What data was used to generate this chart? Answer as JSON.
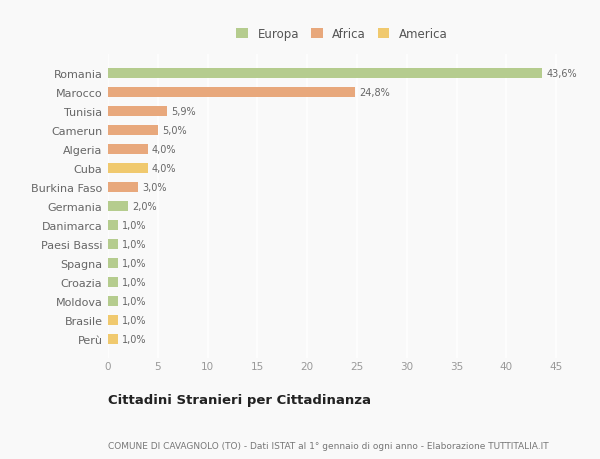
{
  "countries": [
    "Romania",
    "Marocco",
    "Tunisia",
    "Camerun",
    "Algeria",
    "Cuba",
    "Burkina Faso",
    "Germania",
    "Danimarca",
    "Paesi Bassi",
    "Spagna",
    "Croazia",
    "Moldova",
    "Brasile",
    "Perù"
  ],
  "values": [
    43.6,
    24.8,
    5.9,
    5.0,
    4.0,
    4.0,
    3.0,
    2.0,
    1.0,
    1.0,
    1.0,
    1.0,
    1.0,
    1.0,
    1.0
  ],
  "labels": [
    "43,6%",
    "24,8%",
    "5,9%",
    "5,0%",
    "4,0%",
    "4,0%",
    "3,0%",
    "2,0%",
    "1,0%",
    "1,0%",
    "1,0%",
    "1,0%",
    "1,0%",
    "1,0%",
    "1,0%"
  ],
  "colors": [
    "#b5cc8e",
    "#e8a87c",
    "#e8a87c",
    "#e8a87c",
    "#e8a87c",
    "#f0c96e",
    "#e8a87c",
    "#b5cc8e",
    "#b5cc8e",
    "#b5cc8e",
    "#b5cc8e",
    "#b5cc8e",
    "#b5cc8e",
    "#f0c96e",
    "#f0c96e"
  ],
  "legend_labels": [
    "Europa",
    "Africa",
    "America"
  ],
  "legend_colors": [
    "#b5cc8e",
    "#e8a87c",
    "#f0c96e"
  ],
  "title": "Cittadini Stranieri per Cittadinanza",
  "subtitle": "COMUNE DI CAVAGNOLO (TO) - Dati ISTAT al 1° gennaio di ogni anno - Elaborazione TUTTITALIA.IT",
  "xlim": [
    0,
    47
  ],
  "xticks": [
    0,
    5,
    10,
    15,
    20,
    25,
    30,
    35,
    40,
    45
  ],
  "bg_color": "#f9f9f9",
  "grid_color": "#ffffff",
  "bar_height": 0.55
}
